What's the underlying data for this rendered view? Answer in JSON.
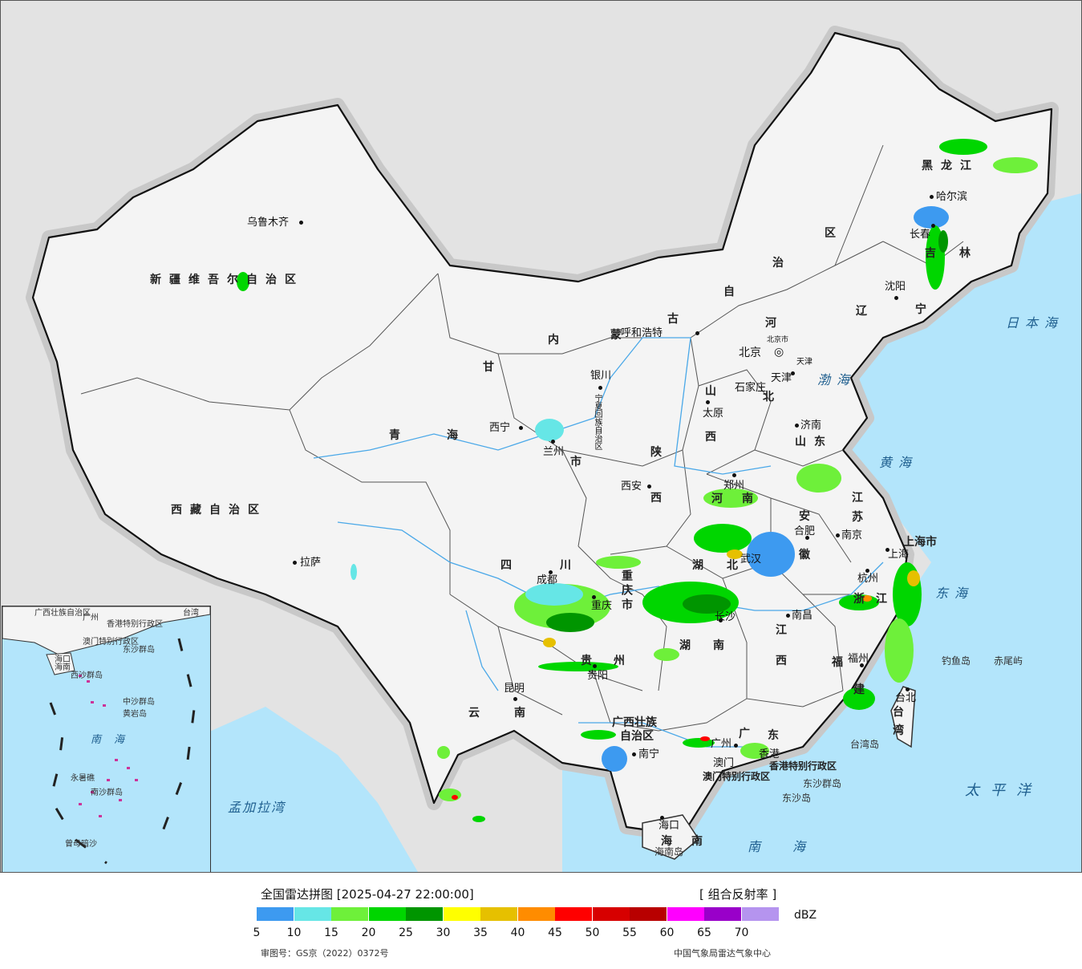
{
  "title": "全国雷达拼图 [2025-04-27 22:00:00]",
  "product": "[ 组合反射率 ]",
  "unit": "dBZ",
  "approval_no": "审图号：GS京（2022）0372号",
  "publisher": "中国气象局雷达气象中心",
  "legend": {
    "colors": [
      "#3d9af0",
      "#66e6e6",
      "#6ef03a",
      "#00d600",
      "#009500",
      "#ffff00",
      "#e6c000",
      "#ff8c00",
      "#ff0000",
      "#d70000",
      "#b80000",
      "#ff00ff",
      "#9900c9",
      "#b594ef"
    ],
    "ticks": [
      "5",
      "10",
      "15",
      "20",
      "25",
      "30",
      "35",
      "40",
      "45",
      "50",
      "55",
      "60",
      "65",
      "70"
    ]
  },
  "provinces": {
    "xinjiang": "新疆维吾尔自治区",
    "tibet": "西藏自治区",
    "qinghai_a": "青",
    "qinghai_b": "海",
    "gansu": "甘",
    "nmg_1": "内",
    "nmg_2": "蒙",
    "nmg_3": "古",
    "nmg_4": "自",
    "nmg_5": "治",
    "nmg_6": "区",
    "heilongjiang": "黑龙江",
    "jilin_1": "吉",
    "jilin_2": "林",
    "liaoning_1": "辽",
    "liaoning_2": "宁",
    "hebei_1": "河",
    "hebei_2": "北",
    "shanxi_1": "山",
    "shanxi_2": "西",
    "shandong": "山东",
    "shaanxi_1": "陕",
    "shaanxi_2": "西",
    "henan_1": "河",
    "henan_2": "南",
    "jiangsu_1": "江",
    "jiangsu_2": "苏",
    "anhui_1": "安",
    "anhui_2": "徽",
    "sichuan_1": "四",
    "sichuan_2": "川",
    "chongqing": "重庆市",
    "hubei_1": "湖",
    "hubei_2": "北",
    "hunan_1": "湖",
    "hunan_2": "南",
    "jiangxi_1": "江",
    "jiangxi_2": "西",
    "zhejiang_1": "浙",
    "zhejiang_2": "江",
    "fujian_1": "福",
    "fujian_2": "建",
    "guizhou_1": "贵",
    "guizhou_2": "州",
    "yunnan_1": "云",
    "yunnan_2": "南",
    "guangxi_1": "广西壮族",
    "guangxi_2": "自治区",
    "guangdong_1": "广",
    "guangdong_2": "东",
    "hainan_1": "海",
    "hainan_2": "南",
    "taiwan_1": "台",
    "taiwan_2": "湾",
    "shanghai": "上海市",
    "gansu_shi": "市",
    "ningxia": "宁夏回族自治区",
    "hongkong": "香港特别行政区",
    "macau": "澳门特别行政区"
  },
  "cities": {
    "urumqi": "乌鲁木齐",
    "lhasa": "拉萨",
    "xining": "西宁",
    "lanzhou": "兰州",
    "yinchuan": "银川",
    "hohhot": "呼和浩特",
    "beijing": "北京",
    "beijing_small": "北京市",
    "tianjin": "天津",
    "tianjin_small": "天津",
    "shijiazhuang": "石家庄",
    "taiyuan": "太原",
    "jinan": "济南",
    "zhengzhou": "郑州",
    "xian": "西安",
    "hefei": "合肥",
    "nanjing": "南京",
    "shanghai_c": "上海",
    "hangzhou": "杭州",
    "wuhan": "武汉",
    "chengdu": "成都",
    "chongqing_c": "重庆",
    "changsha": "长沙",
    "nanchang": "南昌",
    "fuzhou": "福州",
    "guiyang": "贵阳",
    "kunming": "昆明",
    "nanning": "南宁",
    "guangzhou": "广州",
    "hongkong_c": "香港",
    "macau_c": "澳门",
    "haikou": "海口",
    "taipei": "台北",
    "harbin": "哈尔滨",
    "changchun": "长春",
    "shenyang": "沈阳"
  },
  "seas": {
    "japan_sea": "日本海",
    "bohai": "渤海",
    "yellow_sea": "黄海",
    "east_sea": "东海",
    "pacific": "太平洋",
    "south_sea": "南海",
    "bengal": "孟加拉湾"
  },
  "islands": {
    "diaoyu": "钓鱼岛",
    "chiwei": "赤尾屿",
    "taiwan_dao": "台湾岛",
    "dongsha_qd": "东沙群岛",
    "dongsha_d": "东沙岛",
    "hainan_dao": "海南岛"
  },
  "inset": {
    "guangxi": "广西壮族自治区",
    "guangzhou": "广州",
    "hk": "香港特别行政区",
    "macau": "澳门特别行政区",
    "taiwan": "台湾",
    "hainan": "海南",
    "haikou": "海口",
    "dongsha": "东沙群岛",
    "xisha": "西沙群岛",
    "zhongsha": "中沙群岛",
    "huangyan": "黄岩岛",
    "south_sea": "南海",
    "nansha": "南沙群岛",
    "yongshu": "永暑礁",
    "zengmu": "曾母暗沙"
  }
}
